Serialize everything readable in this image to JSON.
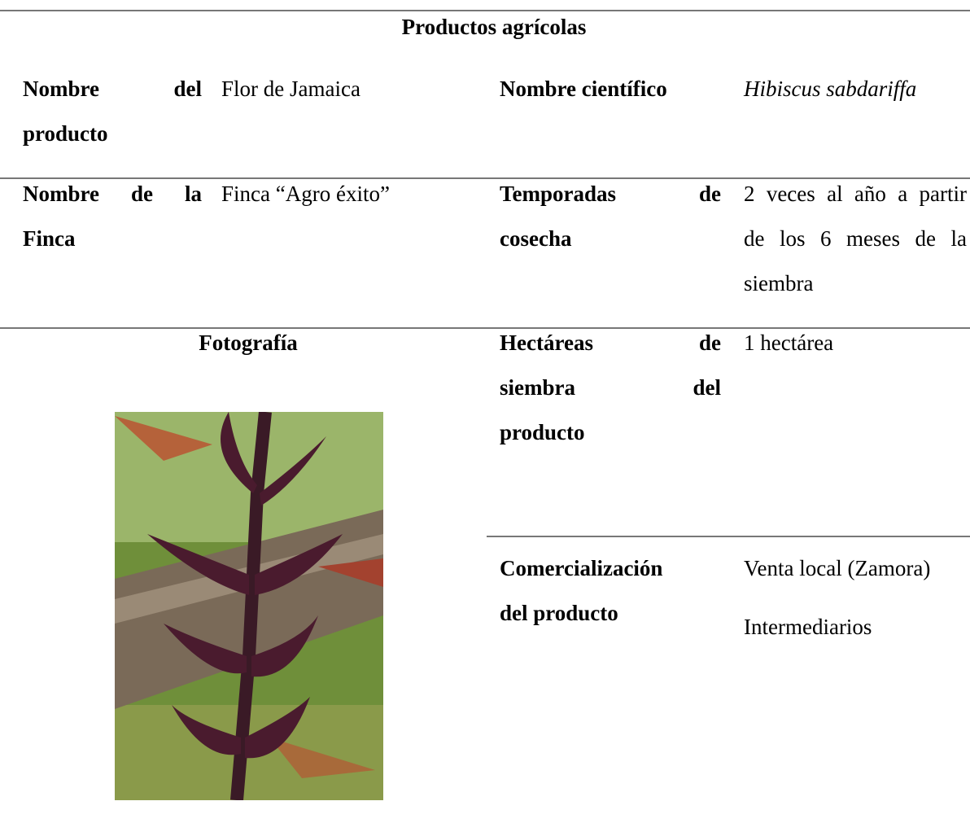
{
  "header": {
    "title": "Productos agrícolas"
  },
  "table": {
    "rows": [
      {
        "label": [
          "Nombre del",
          "producto"
        ],
        "value": [
          "Flor de Jamaica"
        ],
        "label2": [
          "Nombre científico"
        ],
        "value2": [
          "Hibiscus sabdariffa"
        ]
      },
      {
        "label": [
          "Nombre de la",
          "Finca"
        ],
        "value": [
          "Finca “Agro éxito”"
        ],
        "label2": [
          "Temporadas de",
          "cosecha"
        ],
        "value2": [
          "2 veces al año a partir",
          "de los 6 meses de la",
          "siembra"
        ]
      },
      {
        "label": [
          "Fotografía"
        ],
        "label2": [
          "Hectáreas de",
          "siembra del",
          "producto"
        ],
        "value2": [
          "1 hectárea"
        ]
      },
      {
        "label2": [
          "Comercialización",
          "del producto"
        ],
        "value2": [
          "Venta local (Zamora)",
          "Intermediarios"
        ]
      }
    ]
  }
}
